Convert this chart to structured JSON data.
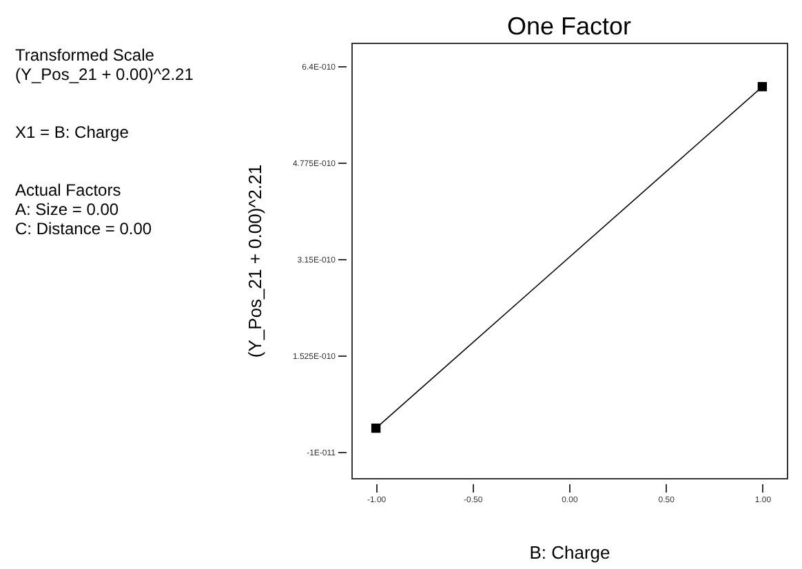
{
  "chart_data": {
    "type": "line",
    "title": "One Factor",
    "xlabel": "B: Charge",
    "ylabel": "(Y_Pos_21 + 0.00)^2.21",
    "annotations": [
      "Transformed Scale",
      "(Y_Pos_21 + 0.00)^2.21",
      "X1 = B: Charge",
      "Actual Factors",
      "A: Size = 0.00",
      "C: Distance = 0.00"
    ],
    "x": [
      -1,
      1
    ],
    "series": [
      {
        "color": "#000000",
        "values": [
          3e-11,
          6.05e-10
        ]
      }
    ],
    "marker": "square",
    "line_style": "solid",
    "grid": false,
    "xlim": [
      -1.127,
      1.127
    ],
    "ylim": [
      -5.4e-11,
      6.79e-10
    ],
    "xticks": [
      {
        "value": -1,
        "label": "-1.00"
      },
      {
        "value": -0.5,
        "label": "-0.50"
      },
      {
        "value": 0,
        "label": "0.00"
      },
      {
        "value": 0.5,
        "label": "0.50"
      },
      {
        "value": 1,
        "label": "1.00"
      }
    ],
    "yticks": [
      {
        "value": -1e-11,
        "label": "-1E-011"
      },
      {
        "value": 1.525e-10,
        "label": "1.525E-010"
      },
      {
        "value": 3.15e-10,
        "label": "3.15E-010"
      },
      {
        "value": 4.775e-10,
        "label": "4.775E-010"
      },
      {
        "value": 6.4e-10,
        "label": "6.4E-010"
      }
    ]
  }
}
